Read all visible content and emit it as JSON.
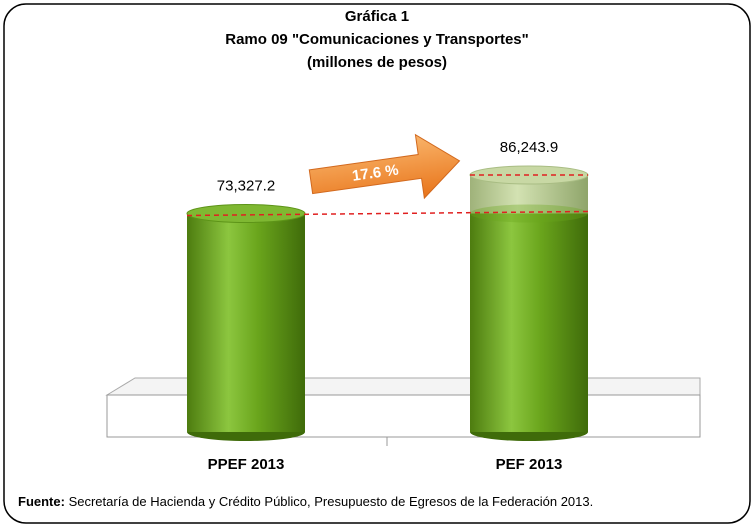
{
  "chart_data": {
    "type": "bar3d",
    "title": "Gráfica 1",
    "subtitle": "Ramo 09 \"Comunicaciones  y Transportes\"",
    "subtitle2": "(millones de pesos)",
    "categories": [
      "PPEF 2013",
      "PEF 2013"
    ],
    "values": [
      73327.2,
      86243.9
    ],
    "value_labels": [
      "73,327.2",
      "86,243.9"
    ],
    "color": "#6aa51c",
    "annotation": "17.6 %",
    "source_label": "Fuente:",
    "source": "Secretaría de Hacienda y Crédito Público, Presupuesto de Egresos de la Federación 2013."
  }
}
